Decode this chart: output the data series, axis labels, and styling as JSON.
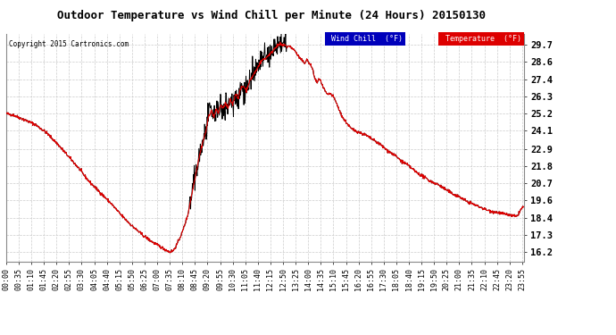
{
  "title": "Outdoor Temperature vs Wind Chill per Minute (24 Hours) 20150130",
  "copyright": "Copyright 2015 Cartronics.com",
  "yticks": [
    16.2,
    17.3,
    18.4,
    19.6,
    20.7,
    21.8,
    22.9,
    24.1,
    25.2,
    26.3,
    27.4,
    28.6,
    29.7
  ],
  "ylim": [
    15.6,
    30.4
  ],
  "bg_color": "#ffffff",
  "plot_bg": "#ffffff",
  "grid_color": "#cccccc",
  "temp_color": "#dd0000",
  "wind_chill_color": "#000000",
  "legend_wind_bg": "#0000bb",
  "legend_temp_bg": "#dd0000",
  "x_tick_interval": 35,
  "total_minutes": 1440,
  "title_fontsize": 9,
  "tick_fontsize": 6,
  "ylabel_fontsize": 7.5
}
